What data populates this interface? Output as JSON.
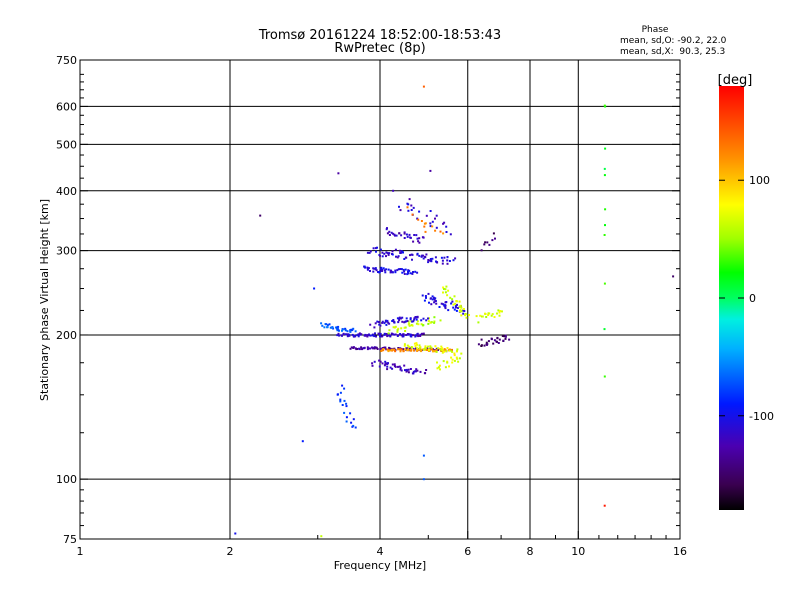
{
  "chart_data": {
    "type": "scatter",
    "title": "Tromsø 20161224 18:52:00-18:53:43",
    "subtitle": "RwPretec (8p)",
    "xlabel": "Frequency [MHz]",
    "ylabel": "Stationary phase Virtual Height [km]",
    "x_scale": "log",
    "y_scale": "log",
    "xlim": [
      1,
      16
    ],
    "ylim": [
      75,
      750
    ],
    "x_ticks": [
      1,
      2,
      4,
      6,
      8,
      10,
      16
    ],
    "x_tick_labels": [
      "1",
      "2",
      "4",
      "6",
      "8",
      "10",
      "16"
    ],
    "y_ticks": [
      75,
      100,
      200,
      300,
      400,
      500,
      600,
      750
    ],
    "y_tick_labels": [
      "75",
      "100",
      "200",
      "300",
      "400",
      "500",
      "600",
      "750"
    ],
    "x_gridlines": [
      2,
      4,
      6,
      8,
      10
    ],
    "y_gridlines": [
      100,
      200,
      300,
      400,
      500,
      600
    ],
    "grid": true,
    "stats": {
      "heading": "Phase",
      "line_o": "mean, sd,O: -90.2, 22.0",
      "line_x": "mean, sd,X:  90.3, 25.3"
    },
    "colorbar": {
      "label": "[deg]",
      "range": [
        -180,
        180
      ],
      "ticks": [
        100,
        0,
        -100
      ],
      "tick_labels": [
        "100",
        "0",
        "-100"
      ]
    },
    "clusters": [
      {
        "f0": 3.05,
        "f1": 3.55,
        "h0": 210,
        "h1": 203,
        "n": 35,
        "jf": 0.015,
        "jh": 0.012,
        "ph": -70
      },
      {
        "f0": 3.3,
        "f1": 4.9,
        "h0": 200,
        "h1": 200,
        "n": 90,
        "jf": 0.01,
        "jh": 0.008,
        "ph": -115
      },
      {
        "f0": 3.5,
        "f1": 5.4,
        "h0": 188,
        "h1": 186,
        "n": 90,
        "jf": 0.008,
        "jh": 0.006,
        "ph": -130
      },
      {
        "f0": 4.0,
        "f1": 5.6,
        "h0": 186,
        "h1": 186,
        "n": 60,
        "jf": 0.008,
        "jh": 0.006,
        "ph": 120
      },
      {
        "f0": 4.5,
        "f1": 5.7,
        "h0": 191,
        "h1": 184,
        "n": 40,
        "jf": 0.015,
        "jh": 0.015,
        "ph": 70
      },
      {
        "f0": 4.2,
        "f1": 5.2,
        "h0": 205,
        "h1": 215,
        "n": 35,
        "jf": 0.02,
        "jh": 0.02,
        "ph": 60
      },
      {
        "f0": 3.9,
        "f1": 4.9,
        "h0": 210,
        "h1": 218,
        "n": 50,
        "jf": 0.02,
        "jh": 0.015,
        "ph": -110
      },
      {
        "f0": 4.9,
        "f1": 5.9,
        "h0": 240,
        "h1": 225,
        "n": 45,
        "jf": 0.02,
        "jh": 0.02,
        "ph": -105
      },
      {
        "f0": 5.4,
        "f1": 6.0,
        "h0": 250,
        "h1": 215,
        "n": 30,
        "jf": 0.02,
        "jh": 0.02,
        "ph": 65
      },
      {
        "f0": 3.9,
        "f1": 4.9,
        "h0": 175,
        "h1": 167,
        "n": 45,
        "jf": 0.02,
        "jh": 0.015,
        "ph": -120
      },
      {
        "f0": 5.2,
        "f1": 5.8,
        "h0": 172,
        "h1": 180,
        "n": 20,
        "jf": 0.02,
        "jh": 0.02,
        "ph": 70
      },
      {
        "f0": 3.3,
        "f1": 3.55,
        "h0": 155,
        "h1": 128,
        "n": 20,
        "jf": 0.02,
        "jh": 0.02,
        "ph": -80
      },
      {
        "f0": 3.7,
        "f1": 4.7,
        "h0": 275,
        "h1": 270,
        "n": 55,
        "jf": 0.015,
        "jh": 0.012,
        "ph": -105
      },
      {
        "f0": 3.8,
        "f1": 5.6,
        "h0": 300,
        "h1": 285,
        "n": 70,
        "jf": 0.02,
        "jh": 0.02,
        "ph": -110
      },
      {
        "f0": 4.1,
        "f1": 4.9,
        "h0": 330,
        "h1": 315,
        "n": 30,
        "jf": 0.015,
        "jh": 0.015,
        "ph": -120
      },
      {
        "f0": 4.4,
        "f1": 5.5,
        "h0": 380,
        "h1": 330,
        "n": 25,
        "jf": 0.03,
        "jh": 0.03,
        "ph": -115
      },
      {
        "f0": 4.6,
        "f1": 5.3,
        "h0": 360,
        "h1": 320,
        "n": 12,
        "jf": 0.02,
        "jh": 0.03,
        "ph": 130
      },
      {
        "f0": 6.3,
        "f1": 7.3,
        "h0": 192,
        "h1": 197,
        "n": 30,
        "jf": 0.015,
        "jh": 0.015,
        "ph": -150
      },
      {
        "f0": 6.3,
        "f1": 7.0,
        "h0": 215,
        "h1": 225,
        "n": 20,
        "jf": 0.015,
        "jh": 0.02,
        "ph": 65
      },
      {
        "f0": 6.4,
        "f1": 6.8,
        "h0": 305,
        "h1": 320,
        "n": 8,
        "jf": 0.01,
        "jh": 0.02,
        "ph": -150
      },
      {
        "f0": 11.3,
        "f1": 11.3,
        "h0": 210,
        "h1": 600,
        "n": 12,
        "jf": 0.002,
        "jh": 0.25,
        "ph": 20
      }
    ],
    "points": [
      {
        "f": 4.9,
        "h": 660,
        "ph": 140
      },
      {
        "f": 11.3,
        "h": 88,
        "ph": 170
      },
      {
        "f": 15.5,
        "h": 265,
        "ph": -150
      },
      {
        "f": 2.05,
        "h": 77,
        "ph": -100
      },
      {
        "f": 2.8,
        "h": 120,
        "ph": -90
      },
      {
        "f": 4.9,
        "h": 112,
        "ph": -70
      },
      {
        "f": 4.9,
        "h": 100,
        "ph": -70
      },
      {
        "f": 2.3,
        "h": 355,
        "ph": -150
      },
      {
        "f": 3.3,
        "h": 435,
        "ph": -130
      },
      {
        "f": 2.95,
        "h": 250,
        "ph": -90
      },
      {
        "f": 3.05,
        "h": 76,
        "ph": 60
      },
      {
        "f": 5.05,
        "h": 440,
        "ph": -130
      },
      {
        "f": 4.25,
        "h": 400,
        "ph": -120
      }
    ]
  }
}
